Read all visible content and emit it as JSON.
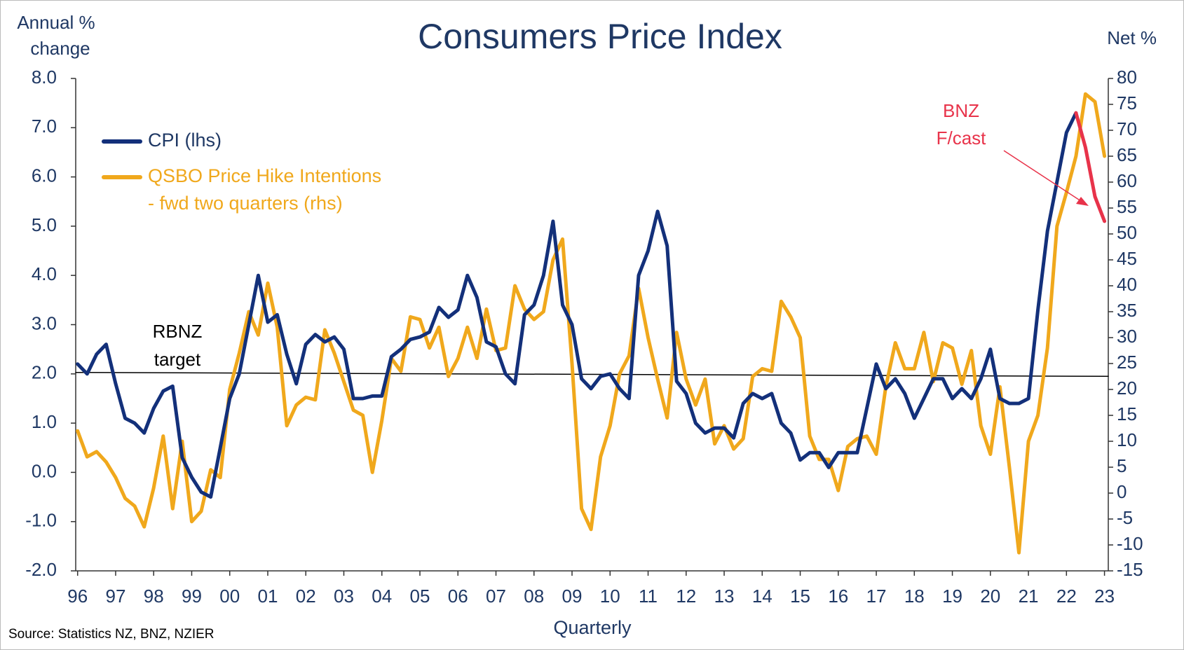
{
  "chart_data": {
    "type": "line",
    "title": "Consumers Price Index",
    "y_label": [
      "Annual %",
      "change"
    ],
    "y2_label": "Net %",
    "x_label": "Quarterly",
    "source": "Source: Statistics NZ, BNZ, NZIER",
    "xlim": [
      1995.95,
      2023.1
    ],
    "xticks": [
      {
        "value": 1996,
        "label": "96"
      },
      {
        "value": 1997,
        "label": "97"
      },
      {
        "value": 1998,
        "label": "98"
      },
      {
        "value": 1999,
        "label": "99"
      },
      {
        "value": 2000,
        "label": "00"
      },
      {
        "value": 2001,
        "label": "01"
      },
      {
        "value": 2002,
        "label": "02"
      },
      {
        "value": 2003,
        "label": "03"
      },
      {
        "value": 2004,
        "label": "04"
      },
      {
        "value": 2005,
        "label": "05"
      },
      {
        "value": 2006,
        "label": "06"
      },
      {
        "value": 2007,
        "label": "07"
      },
      {
        "value": 2008,
        "label": "08"
      },
      {
        "value": 2009,
        "label": "09"
      },
      {
        "value": 2010,
        "label": "10"
      },
      {
        "value": 2011,
        "label": "11"
      },
      {
        "value": 2012,
        "label": "12"
      },
      {
        "value": 2013,
        "label": "13"
      },
      {
        "value": 2014,
        "label": "14"
      },
      {
        "value": 2015,
        "label": "15"
      },
      {
        "value": 2016,
        "label": "16"
      },
      {
        "value": 2017,
        "label": "17"
      },
      {
        "value": 2018,
        "label": "18"
      },
      {
        "value": 2019,
        "label": "19"
      },
      {
        "value": 2020,
        "label": "20"
      },
      {
        "value": 2021,
        "label": "21"
      },
      {
        "value": 2022,
        "label": "22"
      },
      {
        "value": 2023,
        "label": "23"
      }
    ],
    "ylim": [
      -2,
      8
    ],
    "yticks": [
      {
        "value": -2,
        "label": "-2.0"
      },
      {
        "value": -1,
        "label": "-1.0"
      },
      {
        "value": 0,
        "label": "0.0"
      },
      {
        "value": 1,
        "label": "1.0"
      },
      {
        "value": 2,
        "label": "2.0"
      },
      {
        "value": 3,
        "label": "3.0"
      },
      {
        "value": 4,
        "label": "4.0"
      },
      {
        "value": 5,
        "label": "5.0"
      },
      {
        "value": 6,
        "label": "6.0"
      },
      {
        "value": 7,
        "label": "7.0"
      },
      {
        "value": 8,
        "label": "8.0"
      }
    ],
    "y2lim": [
      -15,
      80
    ],
    "y2ticks": [
      -15,
      -10,
      -5,
      0,
      5,
      10,
      15,
      20,
      25,
      30,
      35,
      40,
      45,
      50,
      55,
      60,
      65,
      70,
      75,
      80
    ],
    "grid": false,
    "series": [
      {
        "name": [
          "CPI (lhs)"
        ],
        "color": "#13307a",
        "axis": "y",
        "x": [
          1996,
          1996.25,
          1996.5,
          1996.75,
          1997,
          1997.25,
          1997.5,
          1997.75,
          1998,
          1998.25,
          1998.5,
          1998.75,
          1999,
          1999.25,
          1999.5,
          1999.75,
          2000,
          2000.25,
          2000.5,
          2000.75,
          2001,
          2001.25,
          2001.5,
          2001.75,
          2002,
          2002.25,
          2002.5,
          2002.75,
          2003,
          2003.25,
          2003.5,
          2003.75,
          2004,
          2004.25,
          2004.5,
          2004.75,
          2005,
          2005.25,
          2005.5,
          2005.75,
          2006,
          2006.25,
          2006.5,
          2006.75,
          2007,
          2007.25,
          2007.5,
          2007.75,
          2008,
          2008.25,
          2008.5,
          2008.75,
          2009,
          2009.25,
          2009.5,
          2009.75,
          2010,
          2010.25,
          2010.5,
          2010.75,
          2011,
          2011.25,
          2011.5,
          2011.75,
          2012,
          2012.25,
          2012.5,
          2012.75,
          2013,
          2013.25,
          2013.5,
          2013.75,
          2014,
          2014.25,
          2014.5,
          2014.75,
          2015,
          2015.25,
          2015.5,
          2015.75,
          2016,
          2016.25,
          2016.5,
          2016.75,
          2017,
          2017.25,
          2017.5,
          2017.75,
          2018,
          2018.25,
          2018.5,
          2018.75,
          2019,
          2019.25,
          2019.5,
          2019.75,
          2020,
          2020.25,
          2020.5,
          2020.75,
          2021,
          2021.25,
          2021.5,
          2021.75,
          2022,
          2022.25
        ],
        "values": [
          2.2,
          2.0,
          2.4,
          2.6,
          1.8,
          1.1,
          1.0,
          0.8,
          1.3,
          1.65,
          1.75,
          0.3,
          -0.1,
          -0.4,
          -0.5,
          0.5,
          1.5,
          2.0,
          3.0,
          4.0,
          3.05,
          3.2,
          2.4,
          1.8,
          2.6,
          2.8,
          2.65,
          2.75,
          2.5,
          1.5,
          1.5,
          1.55,
          1.55,
          2.35,
          2.5,
          2.7,
          2.75,
          2.85,
          3.35,
          3.15,
          3.3,
          4.0,
          3.55,
          2.65,
          2.55,
          2.0,
          1.8,
          3.2,
          3.4,
          4.0,
          5.1,
          3.4,
          3.0,
          1.9,
          1.7,
          1.95,
          2.0,
          1.7,
          1.5,
          4.0,
          4.5,
          5.3,
          4.6,
          1.85,
          1.6,
          1.0,
          0.8,
          0.9,
          0.9,
          0.7,
          1.4,
          1.6,
          1.5,
          1.6,
          1.0,
          0.8,
          0.25,
          0.4,
          0.4,
          0.1,
          0.4,
          0.4,
          0.4,
          1.3,
          2.2,
          1.7,
          1.9,
          1.6,
          1.1,
          1.5,
          1.9,
          1.9,
          1.5,
          1.7,
          1.5,
          1.9,
          2.5,
          1.5,
          1.4,
          1.4,
          1.5,
          3.3,
          4.9,
          5.9,
          6.9,
          7.3
        ]
      },
      {
        "name": [
          "QSBO Price Hike Intentions",
          "- fwd two quarters (rhs)"
        ],
        "color": "#f0a81c",
        "axis": "y2",
        "x": [
          1996,
          1996.25,
          1996.5,
          1996.75,
          1997,
          1997.25,
          1997.5,
          1997.75,
          1998,
          1998.25,
          1998.5,
          1998.75,
          1999,
          1999.25,
          1999.5,
          1999.75,
          2000,
          2000.25,
          2000.5,
          2000.75,
          2001,
          2001.25,
          2001.5,
          2001.75,
          2002,
          2002.25,
          2002.5,
          2002.75,
          2003,
          2003.25,
          2003.5,
          2003.75,
          2004,
          2004.25,
          2004.5,
          2004.75,
          2005,
          2005.25,
          2005.5,
          2005.75,
          2006,
          2006.25,
          2006.5,
          2006.75,
          2007,
          2007.25,
          2007.5,
          2007.75,
          2008,
          2008.25,
          2008.5,
          2008.75,
          2009,
          2009.25,
          2009.5,
          2009.75,
          2010,
          2010.25,
          2010.5,
          2010.75,
          2011,
          2011.25,
          2011.5,
          2011.75,
          2012,
          2012.25,
          2012.5,
          2012.75,
          2013,
          2013.25,
          2013.5,
          2013.75,
          2014,
          2014.25,
          2014.5,
          2014.75,
          2015,
          2015.25,
          2015.5,
          2015.75,
          2016,
          2016.25,
          2016.5,
          2016.75,
          2017,
          2017.25,
          2017.5,
          2017.75,
          2018,
          2018.25,
          2018.5,
          2018.75,
          2019,
          2019.25,
          2019.5,
          2019.75,
          2020,
          2020.25,
          2020.5,
          2020.75,
          2021,
          2021.25,
          2021.5,
          2021.75,
          2022,
          2022.25,
          2022.5,
          2022.75,
          2023
        ],
        "values": [
          12,
          7,
          8,
          6,
          3,
          -1,
          -2.5,
          -6.5,
          1,
          11,
          -3,
          10,
          -5.5,
          -3.5,
          4.5,
          3,
          20,
          27,
          35,
          30.5,
          40.5,
          32,
          13,
          17,
          18.5,
          18,
          31.5,
          27,
          21.5,
          16,
          15,
          4,
          14,
          26,
          23.5,
          34,
          33.5,
          28,
          32,
          22.5,
          26,
          32,
          26,
          35.5,
          27.5,
          28,
          40,
          35.5,
          33.5,
          35,
          45,
          49,
          25,
          -3,
          -7,
          7,
          13,
          23,
          26.5,
          39.5,
          30,
          22,
          14.5,
          31,
          22,
          17,
          22,
          9.5,
          13,
          8.5,
          10.5,
          22.5,
          24,
          23.5,
          37,
          34,
          30,
          11,
          6.5,
          6.5,
          0.5,
          9,
          10.5,
          11,
          7.5,
          20.5,
          29,
          24,
          24,
          31,
          21.5,
          29,
          28,
          21,
          27.5,
          13,
          7.5,
          20.5,
          5,
          -11.5,
          10,
          15,
          28,
          51.5,
          58,
          65,
          77,
          75.5,
          65
        ]
      }
    ],
    "forecast": {
      "label": [
        "BNZ",
        "F/cast"
      ],
      "color": "#e8334a",
      "axis": "y",
      "x": [
        2022.25,
        2022.5,
        2022.75,
        2023
      ],
      "values": [
        7.3,
        6.6,
        5.6,
        5.1
      ]
    },
    "target_line": {
      "label": [
        "RBNZ",
        "target"
      ],
      "color": "#000000",
      "axis": "y",
      "x": [
        1995.95,
        2023.1
      ],
      "values": [
        2.03,
        1.95
      ]
    }
  }
}
